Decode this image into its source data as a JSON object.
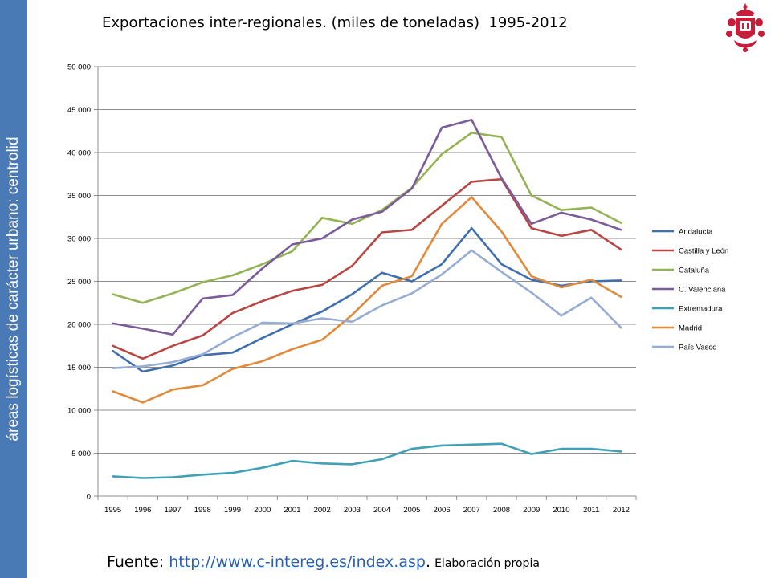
{
  "sidebar": {
    "text": "áreas logísticas de carácter urbano: centrolid",
    "color": "#4a7ab5"
  },
  "footer": {
    "prefix": "Fuente: ",
    "link": "http://www.c-intereg.es/index.asp",
    "dot": ".",
    "note": "Elaboración propia"
  },
  "chart_data": {
    "type": "line",
    "title": "Exportaciones inter-regionales. (miles de toneladas)  1995-2012",
    "xlabel": "",
    "ylabel": "",
    "ylim": [
      0,
      50000
    ],
    "yticks": [
      0,
      5000,
      10000,
      15000,
      20000,
      25000,
      30000,
      35000,
      40000,
      45000,
      50000
    ],
    "ytick_labels": [
      "0",
      "5 000",
      "10 000",
      "15 000",
      "20 000",
      "25 000",
      "30 000",
      "35 000",
      "40 000",
      "45 000",
      "50 000"
    ],
    "grid": true,
    "legend": "right",
    "categories": [
      "1995",
      "1996",
      "1997",
      "1998",
      "1999",
      "2000",
      "2001",
      "2002",
      "2003",
      "2004",
      "2005",
      "2006",
      "2007",
      "2008",
      "2009",
      "2010",
      "2011",
      "2012"
    ],
    "series": [
      {
        "name": "Andalucía",
        "color": "#3f6fae",
        "values": [
          16900,
          14500,
          15200,
          16400,
          16700,
          18400,
          20000,
          21500,
          23500,
          26000,
          25000,
          27000,
          31200,
          27000,
          25200,
          24500,
          25000,
          25100
        ]
      },
      {
        "name": "Castilla y León",
        "color": "#b84744",
        "values": [
          17500,
          16000,
          17500,
          18700,
          21300,
          22700,
          23900,
          24600,
          26800,
          30700,
          31000,
          33800,
          36600,
          36900,
          31200,
          30300,
          31000,
          28700
        ]
      },
      {
        "name": "Cataluña",
        "color": "#94b355",
        "values": [
          23500,
          22500,
          23600,
          24900,
          25700,
          27000,
          28500,
          32400,
          31700,
          33300,
          35900,
          39800,
          42300,
          41800,
          35000,
          33300,
          33600,
          31800
        ]
      },
      {
        "name": "C. Valenciana",
        "color": "#7c5b9a",
        "values": [
          20100,
          19500,
          18800,
          23000,
          23400,
          26500,
          29300,
          30000,
          32200,
          33100,
          35800,
          42900,
          43800,
          37000,
          31700,
          33000,
          32200,
          31000
        ]
      },
      {
        "name": "Extremadura",
        "color": "#3fa0b6",
        "values": [
          2300,
          2100,
          2200,
          2500,
          2700,
          3300,
          4100,
          3800,
          3700,
          4300,
          5500,
          5900,
          6000,
          6100,
          4900,
          5500,
          5500,
          5200
        ]
      },
      {
        "name": "Madrid",
        "color": "#e08a3c",
        "values": [
          12200,
          10900,
          12400,
          12900,
          14800,
          15700,
          17100,
          18200,
          21100,
          24500,
          25600,
          31700,
          34800,
          30800,
          25600,
          24300,
          25200,
          23200
        ]
      },
      {
        "name": "País Vasco",
        "color": "#96acd3",
        "values": [
          14900,
          15100,
          15600,
          16500,
          18500,
          20200,
          20100,
          20700,
          20300,
          22200,
          23600,
          25800,
          28600,
          26100,
          23700,
          21000,
          23100,
          19600
        ]
      }
    ]
  }
}
